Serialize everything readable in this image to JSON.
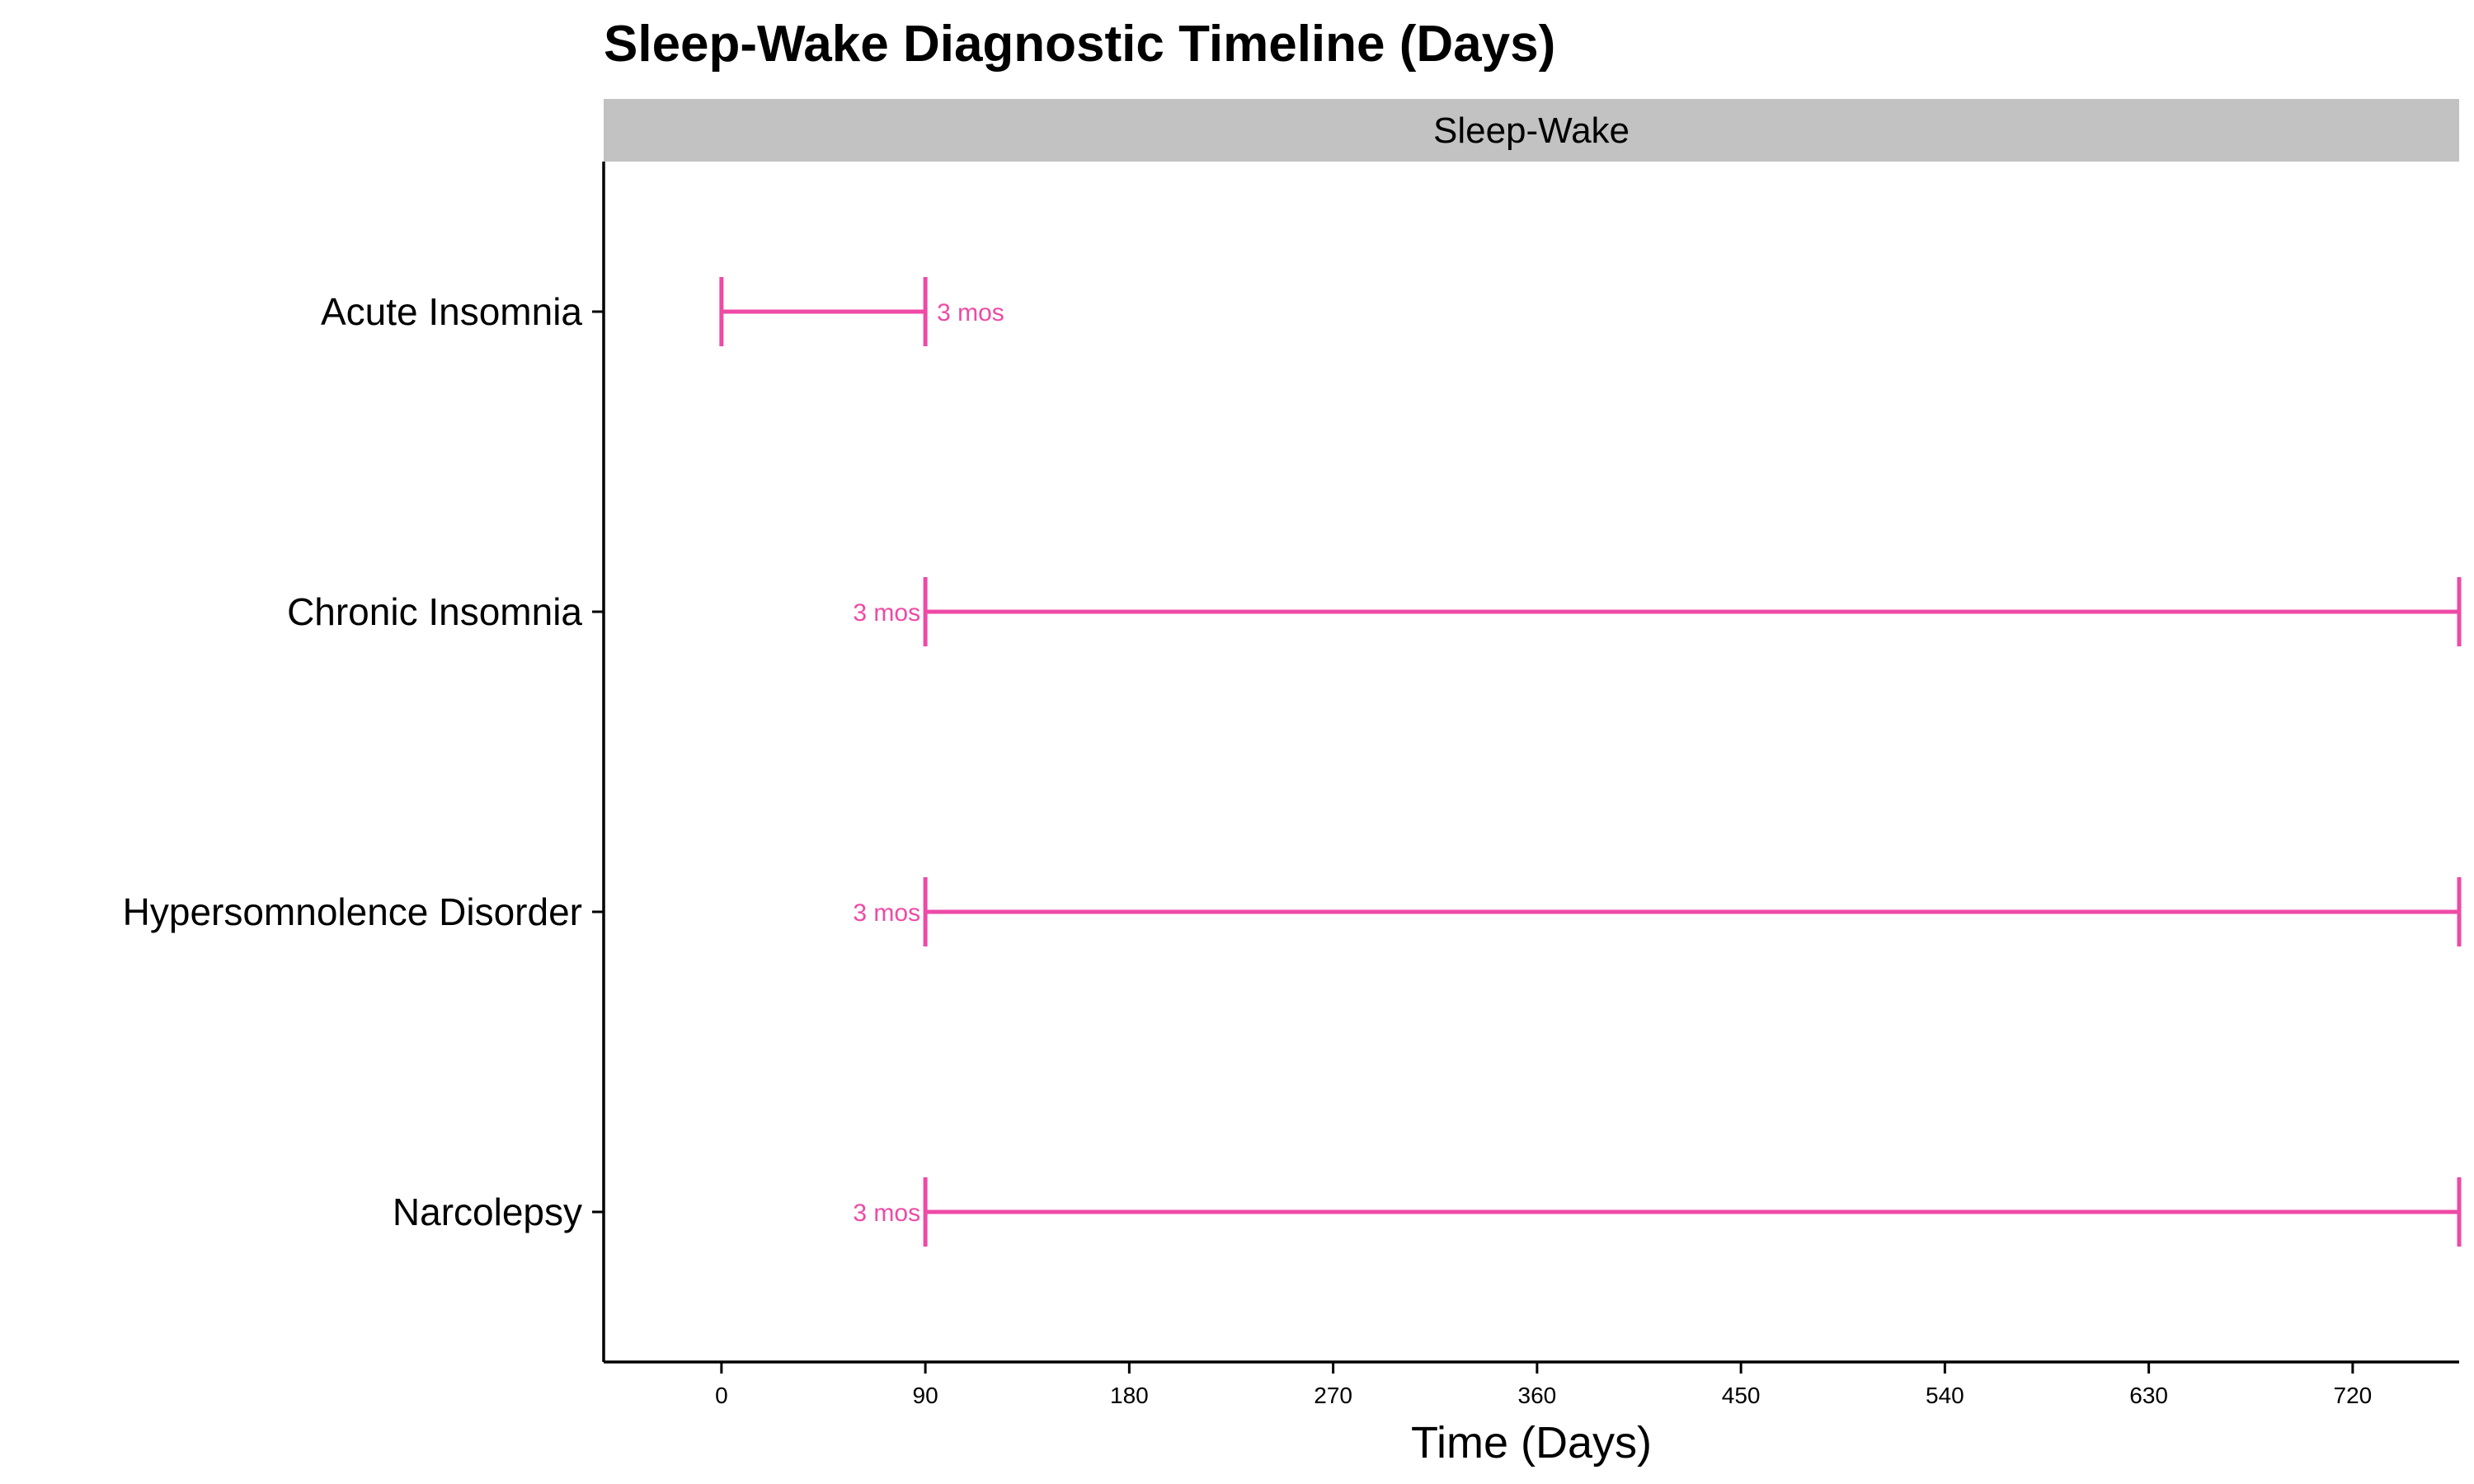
{
  "chart_data": {
    "type": "range",
    "title": "Sleep-Wake Diagnostic Timeline (Days)",
    "facet": "Sleep-Wake",
    "xlabel": "Time (Days)",
    "ylabel": "",
    "xlim": [
      -52,
      767
    ],
    "xticks": [
      "0",
      "90",
      "180",
      "270",
      "360",
      "450",
      "540",
      "630",
      "720"
    ],
    "xtick_values": [
      0,
      90,
      180,
      270,
      360,
      450,
      540,
      630,
      720
    ],
    "grid": false,
    "legend": "none",
    "color": "#ee4aa6",
    "strip_color": "#c2c2c2",
    "rows": [
      {
        "name": "Acute Insomnia",
        "start": 0,
        "end": 90,
        "label": "3 mos",
        "label_side": "right"
      },
      {
        "name": "Chronic Insomnia",
        "start": 90,
        "end": 767,
        "label": "3 mos",
        "label_side": "left"
      },
      {
        "name": "Hypersomnolence Disorder",
        "start": 90,
        "end": 767,
        "label": "3 mos",
        "label_side": "left"
      },
      {
        "name": "Narcolepsy",
        "start": 90,
        "end": 767,
        "label": "3 mos",
        "label_side": "left"
      }
    ]
  }
}
